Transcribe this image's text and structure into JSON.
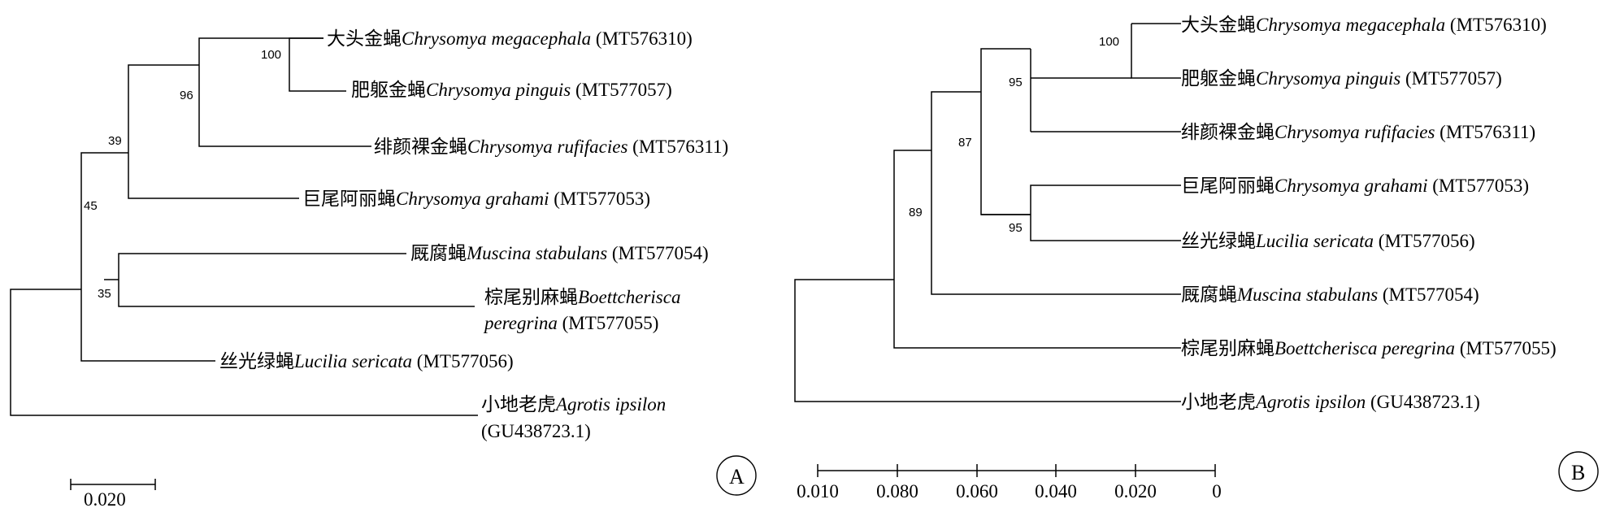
{
  "treeA": {
    "panel_label": "A",
    "scale_label": "0.020",
    "bootstrap": {
      "n100": "100",
      "n96": "96",
      "n39": "39",
      "n45": "45",
      "n35": "35"
    },
    "taxa": {
      "megacephala": {
        "cn": "大头金蝇",
        "sci": "Chrysomya megacephala",
        "acc": " (MT576310)"
      },
      "pinguis": {
        "cn": "肥躯金蝇",
        "sci": "Chrysomya pinguis",
        "acc": " (MT577057)"
      },
      "rufifacies": {
        "cn": "绯颜裸金蝇",
        "sci": "Chrysomya rufifacies",
        "acc": " (MT576311)"
      },
      "grahami": {
        "cn": "巨尾阿丽蝇",
        "sci": "Chrysomya grahami",
        "acc": " (MT577053)"
      },
      "muscina": {
        "cn": "厩腐蝇",
        "sci": "Muscina stabulans",
        "acc": " (MT577054)"
      },
      "boettcherisca": {
        "cn": "棕尾别麻蝇",
        "sci": "Boettcherisca",
        "sci2": "peregrina",
        "acc": " (MT577055)"
      },
      "lucilia": {
        "cn": "丝光绿蝇",
        "sci": "Lucilia sericata",
        "acc": " (MT577056)"
      },
      "agrotis": {
        "cn": "小地老虎",
        "sci": "Agrotis ipsilon",
        "acc": "(GU438723.1)"
      }
    }
  },
  "treeB": {
    "panel_label": "B",
    "axis_ticks": [
      "0.010",
      "0.080",
      "0.060",
      "0.040",
      "0.020",
      "0"
    ],
    "bootstrap": {
      "n100": "100",
      "n95a": "95",
      "n87": "87",
      "n95b": "95",
      "n89": "89"
    },
    "taxa": {
      "megacephala": {
        "cn": "大头金蝇",
        "sci": "Chrysomya megacephala",
        "acc": " (MT576310)"
      },
      "pinguis": {
        "cn": "肥躯金蝇",
        "sci": "Chrysomya pinguis",
        "acc": " (MT577057)"
      },
      "rufifacies": {
        "cn": "绯颜裸金蝇",
        "sci": "Chrysomya rufifacies",
        "acc": " (MT576311)"
      },
      "grahami": {
        "cn": "巨尾阿丽蝇",
        "sci": "Chrysomya grahami",
        "acc": " (MT577053)"
      },
      "lucilia": {
        "cn": "丝光绿蝇",
        "sci": "Lucilia sericata",
        "acc": " (MT577056)"
      },
      "muscina": {
        "cn": "厩腐蝇",
        "sci": "Muscina stabulans",
        "acc": " (MT577054)"
      },
      "boettcherisca": {
        "cn": "棕尾别麻蝇",
        "sci": "Boettcherisca peregrina",
        "acc": " (MT577055)"
      },
      "agrotis": {
        "cn": "小地老虎",
        "sci": "Agrotis ipsilon",
        "acc": " (GU438723.1)"
      }
    }
  }
}
